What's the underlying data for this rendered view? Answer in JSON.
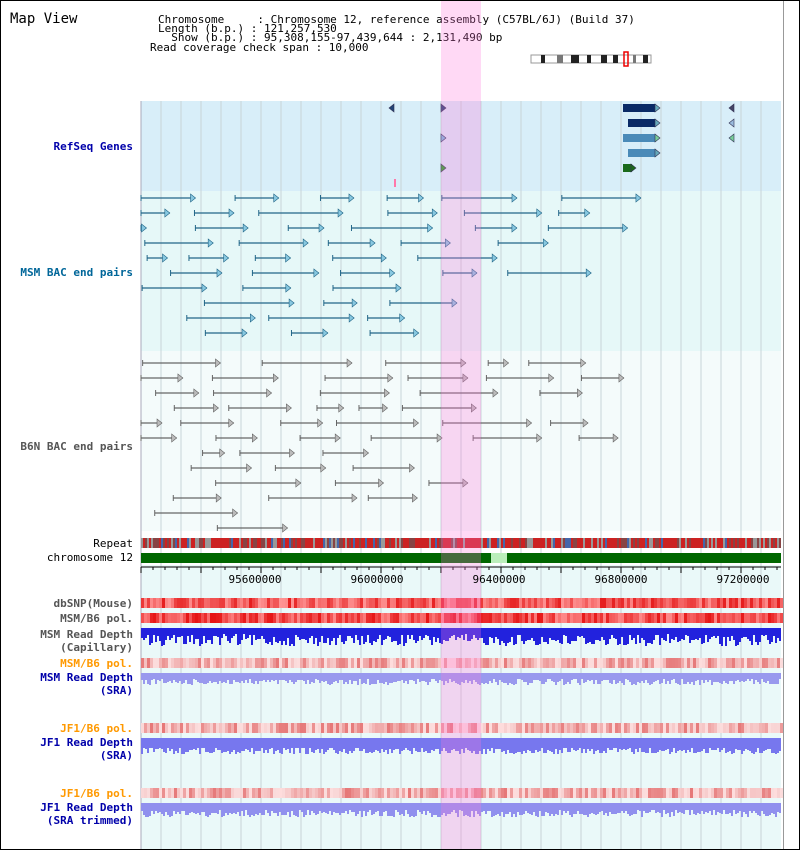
{
  "view": {
    "title": "Map View"
  },
  "info": {
    "line1": "Chromosome     : Chromosome 12, reference assembly (C57BL/6J) (Build 37)",
    "line2": "Length (b.p.) : 121,257,530",
    "line3": "  Show (b.p.) : 95,308,155-97,439,644 : 2,131,490 bp",
    "line4": "Read coverage check span : 10,000"
  },
  "tracks": {
    "refseq": "RefSeq Genes",
    "msm_bac": "MSM BAC end pairs",
    "b6n_bac": "B6N BAC end pairs",
    "repeat": "Repeat",
    "chromosome": "chromosome 12",
    "dbsnp": "dbSNP(Mouse)",
    "msm_pol_1": "MSM/B6 pol.",
    "msm_depth_cap": "MSM Read Depth\n(Capillary)",
    "msm_pol_2": "MSM/B6 pol.",
    "msm_depth_sra": "MSM Read Depth\n(SRA)",
    "jf1_pol_1": "JF1/B6 pol.",
    "jf1_depth_sra": "JF1 Read Depth\n(SRA)",
    "jf1_pol_2": "JF1/B6 pol.",
    "jf1_depth_trim": "JF1 Read Depth\n(SRA trimmed)"
  },
  "axis": {
    "t1": "95600000",
    "t2": "96000000",
    "t3": "96400000",
    "t4": "96800000",
    "t5": "97200000"
  },
  "colors": {
    "refseq_bg": "#d8eef9",
    "bac_bg": "#e6f8f8",
    "highlight": "#ffb0e8",
    "chrom_green": "#006600",
    "depth_blue": "#3333ee",
    "depth_light": "#8888ee"
  }
}
